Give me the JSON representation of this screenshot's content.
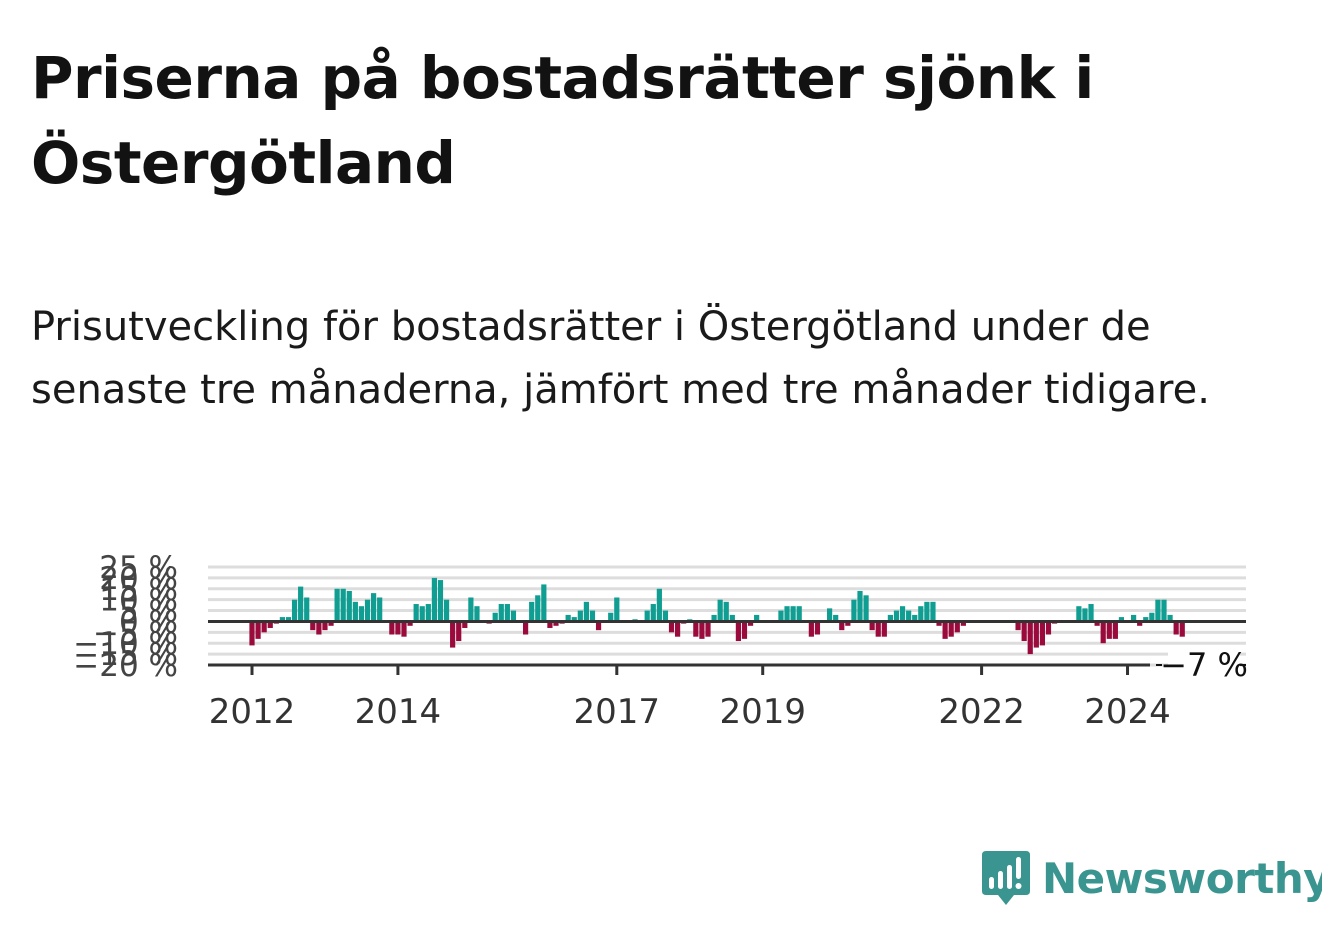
{
  "title": "Priserna på bostadsrätter sjönk i Östergötland",
  "subtitle": "Prisutveckling för bostadsrätter i Östergötland under de senaste tre månaderna, jämfört med tre månader tidigare.",
  "brand": {
    "name": "Newsworthy",
    "icon": "newsworthy-chart-bubble-icon",
    "color": "#3a9590"
  },
  "colors": {
    "positive": "#0f9e91",
    "negative": "#9b0a3c",
    "grid": "#dddddd",
    "zero_line": "#333333"
  },
  "chart_data": {
    "type": "bar",
    "title": "",
    "xlabel": "",
    "ylabel": "",
    "ylim": [
      -20,
      25
    ],
    "yticks": [
      -20,
      -15,
      -10,
      -5,
      0,
      5,
      10,
      15,
      20,
      25
    ],
    "ytick_labels": [
      "−20 %",
      "−15 %",
      "−10 %",
      "−5 %",
      "0 %",
      "5 %",
      "10 %",
      "15 %",
      "20 %",
      "25 %"
    ],
    "xtick_labels": [
      "2012",
      "2014",
      "2017",
      "2019",
      "2022",
      "2024"
    ],
    "xticks": [
      "2012-01",
      "2014-01",
      "2017-01",
      "2019-01",
      "2022-01",
      "2024-01"
    ],
    "last_value_label": "−7 %",
    "grid": true,
    "start_month": "2012-01",
    "series": [
      {
        "values": [
          -11,
          -8,
          -5,
          -3,
          -1,
          2,
          2,
          10,
          16,
          11,
          -4,
          -6,
          -4,
          -2,
          15,
          15,
          14,
          9,
          7,
          10,
          13,
          11,
          0,
          -6,
          -6,
          -7,
          -2,
          8,
          7,
          8,
          20,
          19,
          10,
          -12,
          -9,
          -3,
          11,
          7,
          0,
          -1,
          4,
          8,
          8,
          5,
          0,
          -6,
          9,
          12,
          17,
          -3,
          -2,
          -1,
          3,
          2,
          5,
          9,
          5,
          -4,
          0,
          4,
          11,
          0,
          0,
          1,
          0,
          5,
          8,
          15,
          5,
          -5,
          -7,
          -1,
          1,
          -7,
          -8,
          -7,
          3,
          10,
          9,
          3,
          -9,
          -8,
          -2,
          3,
          0,
          0,
          0,
          5,
          7,
          7,
          7,
          0,
          -7,
          -6,
          0,
          6,
          3,
          -4,
          -2,
          10,
          14,
          12,
          -4,
          -7,
          -7,
          3,
          5,
          7,
          5,
          3,
          7,
          9,
          9,
          -2,
          -8,
          -7,
          -5,
          -2,
          0,
          0,
          0,
          0,
          0,
          0,
          0,
          0,
          -4,
          -9,
          -15,
          -12,
          -11,
          -6,
          -1,
          0,
          0,
          0,
          7,
          6,
          8,
          -2,
          -10,
          -8,
          -8,
          2,
          0,
          3,
          -2,
          2,
          4,
          10,
          10,
          3,
          -6,
          -7
        ]
      }
    ]
  }
}
